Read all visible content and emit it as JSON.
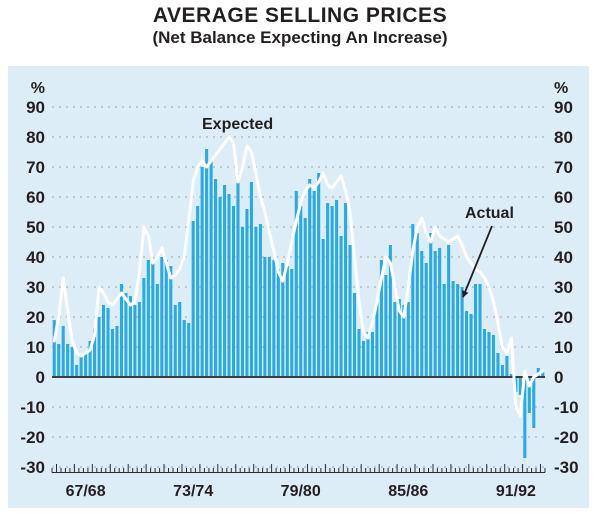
{
  "page": {
    "title": "AVERAGE SELLING PRICES",
    "subtitle": "(Net Balance Expecting An Increase)"
  },
  "chart_data": {
    "type": "combo-bar-line",
    "title": "AVERAGE SELLING PRICES",
    "subtitle": "(Net Balance Expecting An Increase)",
    "frequency": "quarterly",
    "unit_left": "%",
    "unit_right": "%",
    "ylim": [
      -30,
      90
    ],
    "y_ticks": [
      90,
      80,
      70,
      60,
      50,
      40,
      30,
      20,
      10,
      0,
      -10,
      -20,
      -30
    ],
    "grid": "horizontal-dashed",
    "background": "#dcedf8",
    "x_axis": {
      "tick_labels": [
        "67/68",
        "73/74",
        "79/80",
        "85/86",
        "91/92"
      ],
      "label_bar_indices": [
        7,
        31,
        55,
        79,
        103
      ],
      "minor_ticks": "one per quarter, tall tick each year"
    },
    "series": [
      {
        "name": "Actual",
        "type": "bar",
        "color": "#29abe2",
        "values": [
          19,
          11,
          17,
          11,
          10,
          4,
          7,
          8,
          12,
          16,
          20,
          24,
          23,
          16,
          17,
          31,
          28,
          27,
          24,
          25,
          33,
          39,
          40,
          31,
          40,
          39,
          37,
          24,
          25,
          19,
          18,
          52,
          57,
          70,
          76,
          72,
          66,
          60,
          64,
          61,
          57,
          68,
          50,
          56,
          65,
          50,
          51,
          40,
          40,
          39,
          36,
          38,
          37,
          36,
          62,
          57,
          53,
          66,
          62,
          68,
          46,
          58,
          57,
          59,
          47,
          58,
          44,
          28,
          16,
          12,
          15,
          15,
          25,
          39,
          34,
          44,
          25,
          26,
          24,
          25,
          51,
          48,
          42,
          38,
          48,
          42,
          43,
          31,
          44,
          32,
          31,
          30,
          22,
          21,
          31,
          31,
          16,
          15,
          14,
          8,
          4,
          7,
          1,
          -5,
          -6,
          -27,
          -12,
          -17,
          3,
          2
        ]
      },
      {
        "name": "Expected",
        "type": "line",
        "color": "#ffffff",
        "values": [
          12,
          20,
          33,
          22,
          12,
          8,
          7,
          8,
          9,
          14,
          30,
          28,
          25,
          24,
          26,
          28,
          26,
          24,
          25,
          35,
          50,
          47,
          38,
          40,
          43,
          38,
          33,
          34,
          36,
          40,
          52,
          65,
          70,
          72,
          70,
          72,
          74,
          76,
          78,
          80,
          78,
          65,
          70,
          77,
          75,
          68,
          60,
          55,
          48,
          42,
          35,
          32,
          38,
          45,
          52,
          58,
          62,
          64,
          63,
          65,
          68,
          64,
          63,
          65,
          67,
          62,
          55,
          40,
          25,
          15,
          13,
          18,
          25,
          33,
          40,
          38,
          30,
          22,
          20,
          30,
          42,
          50,
          53,
          48,
          45,
          50,
          47,
          46,
          45,
          46,
          47,
          44,
          40,
          38,
          36,
          35,
          33,
          30,
          25,
          18,
          10,
          8,
          13,
          -10,
          -13,
          2,
          -3,
          0,
          1,
          2
        ]
      }
    ],
    "annotations": [
      {
        "text": "Expected",
        "target_series": "Expected"
      },
      {
        "text": "Actual",
        "target_series": "Actual",
        "arrow": true
      }
    ]
  }
}
